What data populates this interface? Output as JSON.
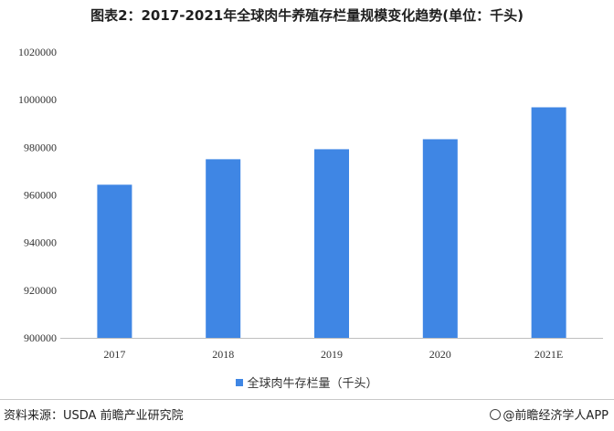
{
  "chart_data": {
    "type": "bar",
    "title": "图表2：2017-2021年全球肉牛养殖存栏量规模变化趋势(单位：千头)",
    "categories": [
      "2017",
      "2018",
      "2019",
      "2020",
      "2021E"
    ],
    "series": [
      {
        "name": "全球肉牛存栏量（千头）",
        "values": [
          964300,
          975000,
          979200,
          983400,
          996800
        ],
        "color": "#3f86e4"
      }
    ],
    "xlabel": "",
    "ylabel": "",
    "ylim": [
      900000,
      1020000
    ],
    "yticks": [
      900000,
      920000,
      940000,
      960000,
      980000,
      1000000,
      1020000
    ],
    "grid": false,
    "legend_position": "bottom"
  },
  "footer": {
    "source": "资料来源：USDA 前瞻产业研究院",
    "brand": "@前瞻经济学人APP"
  }
}
